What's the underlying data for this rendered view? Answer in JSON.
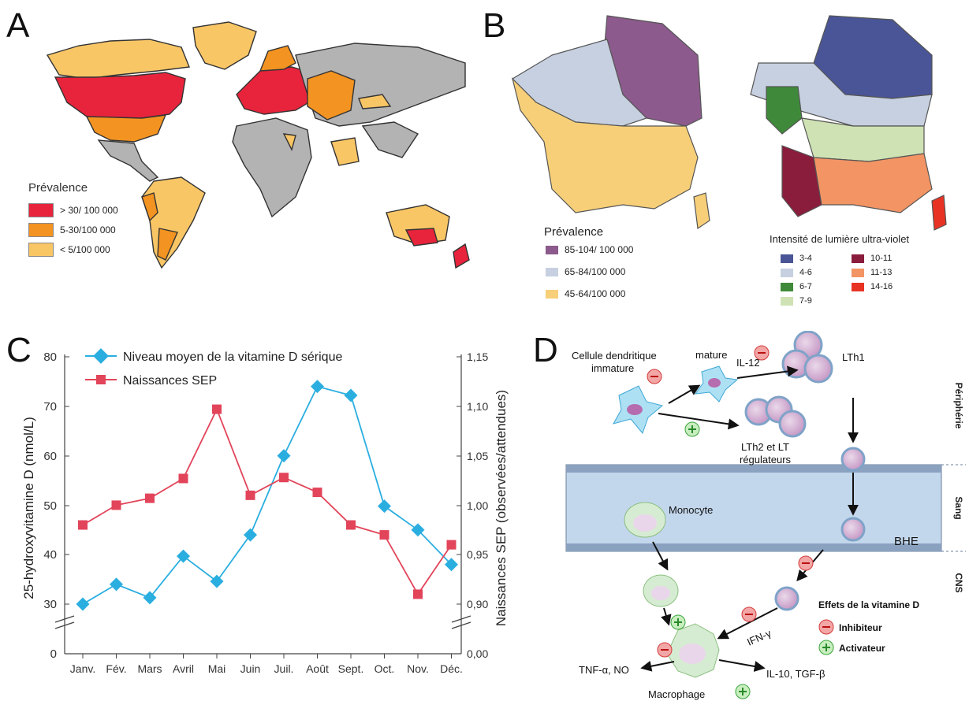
{
  "colors": {
    "high": "#e8233c",
    "mid": "#f39321",
    "low": "#f9c666",
    "land": "#b3b3b3",
    "purple": "#8c5a8c",
    "lightblue": "#c6d0e0",
    "yellow": "#f7cf78",
    "vitd": "#2aaee0",
    "sep": "#e2445a"
  },
  "panelA": {
    "letter": "A",
    "legend_title": "Prévalence",
    "legend": [
      {
        "label": "> 30/ 100 000",
        "color": "#e8233c"
      },
      {
        "label": "5-30/100 000",
        "color": "#f39321"
      },
      {
        "label": "< 5/100 000",
        "color": "#f9c666"
      }
    ]
  },
  "panelB": {
    "letter": "B",
    "legend_title": "Prévalence",
    "legend": [
      {
        "label": "85-104/ 100 000",
        "color": "#8c5a8c"
      },
      {
        "label": "65-84/100 000",
        "color": "#c6d0e0"
      },
      {
        "label": "45-64/100 000",
        "color": "#f7cf78"
      }
    ],
    "uv_title": "Intensité de lumière ultra-violet",
    "uv_legend": [
      {
        "label": "3-4",
        "color": "#4a5597"
      },
      {
        "label": "4-6",
        "color": "#c6d0e0"
      },
      {
        "label": "6-7",
        "color": "#3f8a3a"
      },
      {
        "label": "7-9",
        "color": "#cfe2b4"
      },
      {
        "label": "10-11",
        "color": "#8a1c3c"
      },
      {
        "label": "11-13",
        "color": "#f29464"
      },
      {
        "label": "14-16",
        "color": "#e83324"
      }
    ]
  },
  "panelC": {
    "letter": "C",
    "legend": [
      "Niveau moyen de la vitamine D sérique",
      "Naissances SEP"
    ],
    "left_axis_label": "25-hydroxyvitamine D (nmol/L)",
    "right_axis_label": "Naissances SEP (observées/attendues)",
    "left_ticks": [
      "0",
      "30",
      "40",
      "50",
      "60",
      "70",
      "80"
    ],
    "right_ticks": [
      "0,00",
      "0,90",
      "0,95",
      "1,00",
      "1,05",
      "1,10",
      "1,15"
    ]
  },
  "chart_data": {
    "type": "line",
    "categories": [
      "Janv.",
      "Fév.",
      "Mars",
      "Avril",
      "Mai",
      "Juin",
      "Juil.",
      "Août",
      "Sept.",
      "Oct.",
      "Nov.",
      "Déc."
    ],
    "series": [
      {
        "name": "Niveau moyen de la vitamine D sérique",
        "axis": "left",
        "marker": "diamond",
        "values": [
          30,
          34,
          31.3,
          39.7,
          34.6,
          44,
          60,
          74,
          72.2,
          49.8,
          45,
          38
        ]
      },
      {
        "name": "Naissances SEP",
        "axis": "right",
        "marker": "square",
        "values": [
          0.98,
          1.0,
          1.007,
          1.027,
          1.097,
          1.01,
          1.028,
          1.013,
          0.98,
          0.97,
          0.91,
          0.96
        ]
      }
    ],
    "ylabel": "25-hydroxyvitamine D (nmol/L)",
    "ylabel_right": "Naissances SEP (observées/attendues)",
    "ylim": [
      0,
      80
    ],
    "ylim_right": [
      0,
      1.15
    ],
    "axis_break": true,
    "legend_position": "top"
  },
  "panelD": {
    "letter": "D",
    "labels": {
      "immature": "Cellule dendritique\nimmature",
      "mature": "mature",
      "il12": "IL-12",
      "lth1": "LTh1",
      "lth2": "LTh2 et LT\nrégulateurs",
      "monocyte": "Monocyte",
      "bhe": "BHE",
      "ifn": "IFN-γ",
      "tnf": "TNF-α, NO",
      "il10": "IL-10, TGF-β",
      "macrophage": "Macrophage",
      "zone_periph": "Périphérie",
      "zone_sang": "Sang",
      "zone_cns": "CNS",
      "effects_title": "Effets de la vitamine D",
      "inhibitor": "Inhibiteur",
      "activator": "Activateur"
    }
  }
}
